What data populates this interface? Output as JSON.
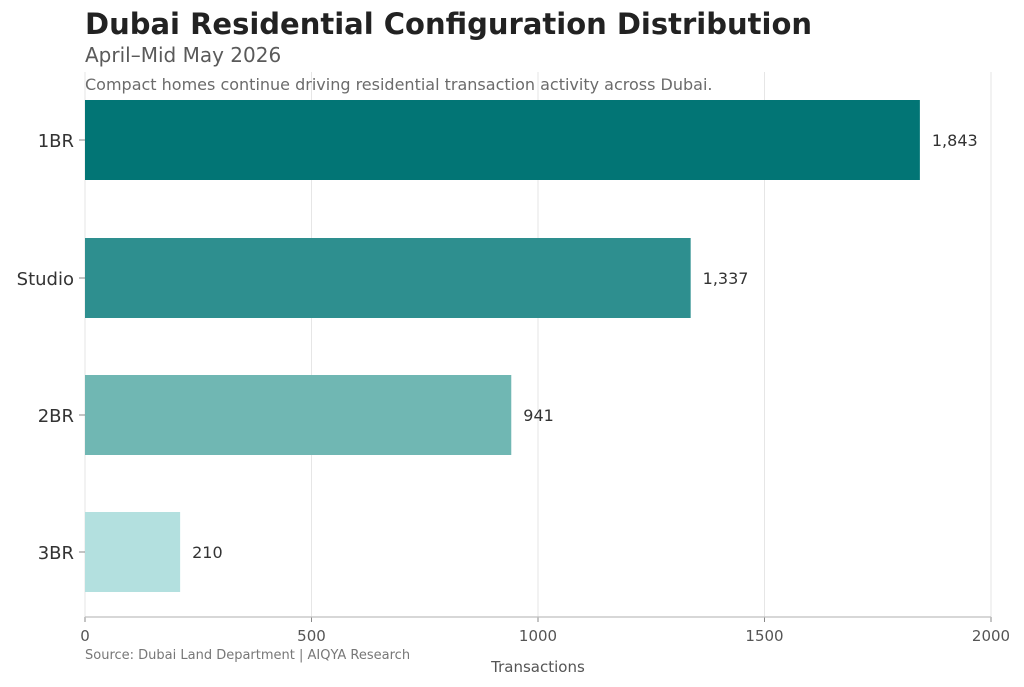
{
  "chart_data": {
    "type": "bar",
    "orientation": "horizontal",
    "title": "Dubai Residential Configuration Distribution",
    "subtitle": "April–Mid May 2026",
    "annotation": "Compact homes continue driving residential transaction activity across Dubai.",
    "source": "Source: Dubai Land Department | AIQYA Research",
    "xlabel": "Transactions",
    "ylabel": "",
    "xlim": [
      0,
      2000
    ],
    "xticks": [
      0,
      500,
      1000,
      1500,
      2000
    ],
    "xtick_labels": [
      "0",
      "500",
      "1000",
      "1500",
      "2000"
    ],
    "grid": "vertical",
    "categories": [
      "1BR",
      "Studio",
      "2BR",
      "3BR"
    ],
    "values": [
      1843,
      1337,
      941,
      210
    ],
    "value_labels": [
      "1,843",
      "1,337",
      "941",
      "210"
    ],
    "colors": [
      "#027575",
      "#2e8f8f",
      "#70b7b3",
      "#b3e0df"
    ]
  }
}
